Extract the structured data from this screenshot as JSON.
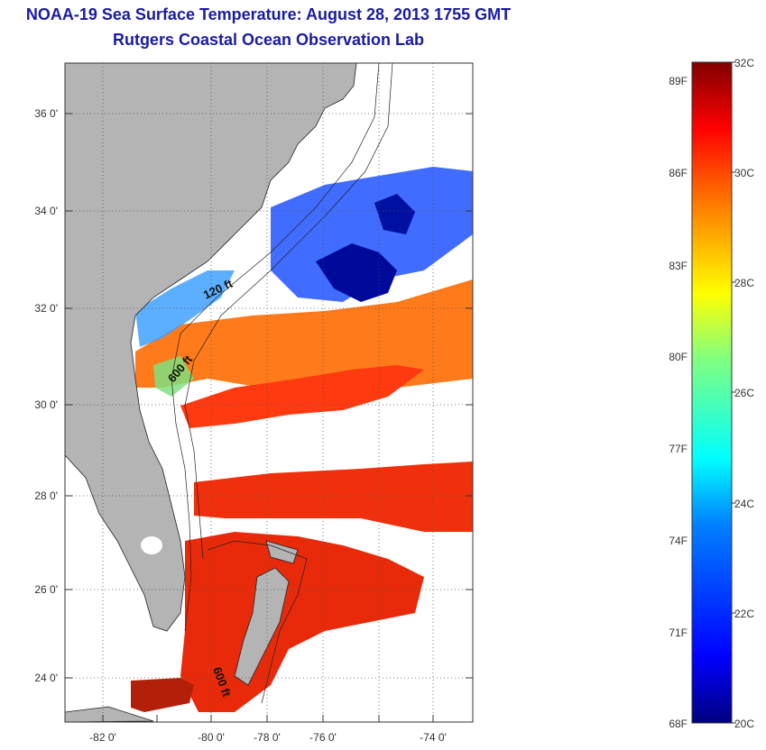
{
  "header": {
    "title": "NOAA-19 Sea Surface Temperature:  August 28, 2013 1755 GMT",
    "subtitle": "Rutgers Coastal Ocean Observation Lab"
  },
  "map": {
    "lat_ticks": [
      "36 0'",
      "34 0'",
      "32 0'",
      "30 0'",
      "28 0'",
      "26 0'",
      "24 0'"
    ],
    "lon_ticks": [
      "-82 0'",
      "-80 0'",
      "-78 0'",
      "-76 0'",
      "-74 0'"
    ],
    "contour_labels": [
      "120 ft",
      "600 ft",
      "600 ft"
    ],
    "colors": {
      "land": "#b4b4b4",
      "no_data": "#ffffff",
      "grid": "#555555"
    }
  },
  "colorbar": {
    "celsius_labels": [
      "32C",
      "30C",
      "28C",
      "26C",
      "24C",
      "22C",
      "20C"
    ],
    "fahrenheit_labels": [
      "89F",
      "86F",
      "83F",
      "80F",
      "77F",
      "74F",
      "71F",
      "68F"
    ],
    "range_c": [
      20,
      32
    ],
    "colors": [
      "#000080",
      "#0000ff",
      "#0080ff",
      "#00ffff",
      "#80ff80",
      "#ffff00",
      "#ff8000",
      "#ff0000",
      "#800000"
    ]
  }
}
